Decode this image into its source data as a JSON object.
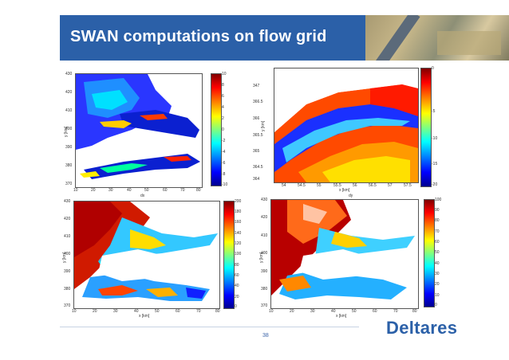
{
  "slide": {
    "title": "SWAN computations on flow grid",
    "page_number": "38",
    "logo_text": "Deltares"
  },
  "plots": {
    "p1": {
      "y_ticks": [
        "430",
        "420",
        "410",
        "400",
        "390",
        "380",
        "370"
      ],
      "x_ticks": [
        "10",
        "20",
        "30",
        "40",
        "50",
        "60",
        "70",
        "80"
      ],
      "ylabel": "y [km]",
      "sub": "dx",
      "cbar_ticks": [
        "10",
        "8",
        "6",
        "4",
        "2",
        "0",
        "-2",
        "-4",
        "-6",
        "-8",
        "-10"
      ]
    },
    "p2": {
      "y_ticks": [
        "347",
        "366.5",
        "366",
        "365.5",
        "365",
        "364.5",
        "364"
      ],
      "x_ticks": [
        "54",
        "54.5",
        "55",
        "55.5",
        "56",
        "56.5",
        "57",
        "57.5"
      ],
      "ylabel": "y [km]",
      "xlabel": "x [km]",
      "sub": "dy",
      "cbar_ticks": [
        "0",
        "-5",
        "-10",
        "-15",
        "-20"
      ]
    },
    "p3": {
      "y_ticks": [
        "430",
        "420",
        "410",
        "400",
        "390",
        "380",
        "370"
      ],
      "x_ticks": [
        "10",
        "20",
        "30",
        "40",
        "50",
        "60",
        "70",
        "80"
      ],
      "ylabel": "y [km]",
      "xlabel": "x [km]",
      "cbar_ticks": [
        "200",
        "180",
        "160",
        "140",
        "120",
        "100",
        "80",
        "60",
        "40",
        "20",
        "0"
      ]
    },
    "p4": {
      "y_ticks": [
        "430",
        "420",
        "410",
        "400",
        "390",
        "380",
        "370"
      ],
      "x_ticks": [
        "10",
        "20",
        "30",
        "40",
        "50",
        "60",
        "70",
        "80"
      ],
      "ylabel": "y [km]",
      "xlabel": "x [km]",
      "cbar_ticks": [
        "100",
        "90",
        "80",
        "70",
        "60",
        "50",
        "40",
        "30",
        "20",
        "10",
        "0"
      ]
    }
  }
}
